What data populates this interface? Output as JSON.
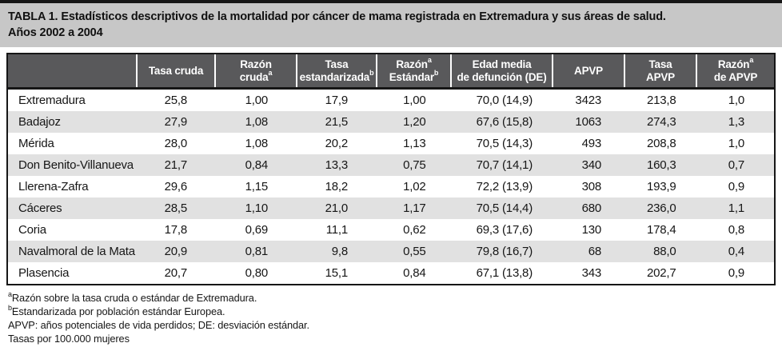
{
  "title": {
    "line1": "TABLA 1. Estadísticos descriptivos de la mortalidad por cáncer de mama registrada en Extremadura y sus áreas de salud.",
    "line2": "Años 2002 a 2004"
  },
  "table": {
    "columns": [
      {
        "id": "area",
        "lines": [
          {
            "text": ""
          }
        ]
      },
      {
        "id": "tasa-cruda",
        "lines": [
          {
            "text": "Tasa cruda"
          }
        ]
      },
      {
        "id": "razon-cruda",
        "lines": [
          {
            "text": "Razón"
          },
          {
            "text": "cruda",
            "sup": "a"
          }
        ]
      },
      {
        "id": "tasa-estandarizada",
        "lines": [
          {
            "text": "Tasa"
          },
          {
            "text": "estandarizada",
            "sup": "b"
          }
        ]
      },
      {
        "id": "razon-estandar",
        "lines": [
          {
            "text": "Razón",
            "sup": "a"
          },
          {
            "text": "Estándar",
            "sup": "b"
          }
        ]
      },
      {
        "id": "edad-media-defuncion",
        "lines": [
          {
            "text": "Edad media"
          },
          {
            "text": "de defunción (DE)"
          }
        ]
      },
      {
        "id": "apvp",
        "lines": [
          {
            "text": "APVP"
          }
        ]
      },
      {
        "id": "tasa-apvp",
        "lines": [
          {
            "text": "Tasa"
          },
          {
            "text": "APVP"
          }
        ]
      },
      {
        "id": "razon-apvp",
        "lines": [
          {
            "text": "Razón",
            "sup": "a"
          },
          {
            "text": "de APVP"
          }
        ]
      }
    ],
    "rows": [
      {
        "area": "Extremadura",
        "values": [
          "25,8",
          "1,00",
          "17,9",
          "1,00",
          "70,0 (14,9)",
          "3423",
          "213,8",
          "1,0"
        ]
      },
      {
        "area": "Badajoz",
        "values": [
          "27,9",
          "1,08",
          "21,5",
          "1,20",
          "67,6 (15,8)",
          "1063",
          "274,3",
          "1,3"
        ]
      },
      {
        "area": "Mérida",
        "values": [
          "28,0",
          "1,08",
          "20,2",
          "1,13",
          "70,5 (14,3)",
          "493",
          "208,8",
          "1,0"
        ]
      },
      {
        "area": "Don Benito-Villanueva",
        "values": [
          "21,7",
          "0,84",
          "13,3",
          "0,75",
          "70,7 (14,1)",
          "340",
          "160,3",
          "0,7"
        ]
      },
      {
        "area": "Llerena-Zafra",
        "values": [
          "29,6",
          "1,15",
          "18,2",
          "1,02",
          "72,2 (13,9)",
          "308",
          "193,9",
          "0,9"
        ]
      },
      {
        "area": "Cáceres",
        "values": [
          "28,5",
          "1,10",
          "21,0",
          "1,17",
          "70,5 (14,4)",
          "680",
          "236,0",
          "1,1"
        ]
      },
      {
        "area": "Coria",
        "values": [
          "17,8",
          "0,69",
          "11,1",
          "0,62",
          "69,3 (17,6)",
          "130",
          "178,4",
          "0,8"
        ]
      },
      {
        "area": "Navalmoral de la Mata",
        "values": [
          "20,9",
          "0,81",
          "9,8",
          "0,55",
          "79,8 (16,7)",
          "68",
          "88,0",
          "0,4"
        ]
      },
      {
        "area": "Plasencia",
        "values": [
          "20,7",
          "0,80",
          "15,1",
          "0,84",
          "67,1 (13,8)",
          "343",
          "202,7",
          "0,9"
        ]
      }
    ]
  },
  "footnotes": [
    {
      "sup": "a",
      "text": "Razón sobre la tasa cruda o estándar de Extremadura."
    },
    {
      "sup": "b",
      "text": "Estandarizada por población estándar Europea."
    },
    {
      "sup": "",
      "text": "APVP: años potenciales de vida perdidos; DE: desviación estándar."
    },
    {
      "sup": "",
      "text": "Tasas por 100.000 mujeres"
    }
  ],
  "colors": {
    "ink": "#161616",
    "title_band": "#c7c7c7",
    "header_bg": "#59595b",
    "row_stripe": "#e1e1e1",
    "header_text": "#ffffff"
  }
}
